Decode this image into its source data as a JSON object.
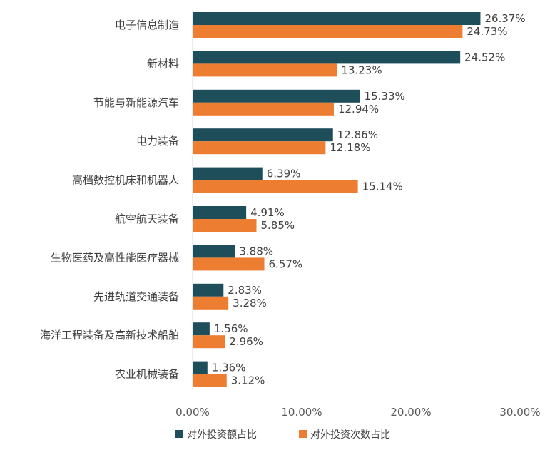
{
  "chart_data": {
    "type": "bar",
    "orientation": "horizontal",
    "categories": [
      "电子信息制造",
      "新材料",
      "节能与新能源汽车",
      "电力装备",
      "高档数控机床和机器人",
      "航空航天装备",
      "生物医药及高性能医疗器械",
      "先进轨道交通装备",
      "海洋工程装备及高新技术船舶",
      "农业机械装备"
    ],
    "series": [
      {
        "name": "对外投资额占比",
        "color": "#1f4e5b",
        "values": [
          26.37,
          24.52,
          15.33,
          12.86,
          6.39,
          4.91,
          3.88,
          2.83,
          1.56,
          1.36
        ],
        "labels": [
          "26.37%",
          "24.52%",
          "15.33%",
          "12.86%",
          "6.39%",
          "4.91%",
          "3.88%",
          "2.83%",
          "1.56%",
          "1.36%"
        ]
      },
      {
        "name": "对外投资次数占比",
        "color": "#ed7d31",
        "values": [
          24.73,
          13.23,
          12.94,
          12.18,
          15.14,
          5.85,
          6.57,
          3.28,
          2.96,
          3.12
        ],
        "labels": [
          "24.73%",
          "13.23%",
          "12.94%",
          "12.18%",
          "15.14%",
          "5.85%",
          "6.57%",
          "3.28%",
          "2.96%",
          "3.12%"
        ]
      }
    ],
    "xlim": [
      0,
      30
    ],
    "xticks": [
      0,
      10,
      20,
      30
    ],
    "xtick_labels": [
      "0.00%",
      "10.00%",
      "20.00%",
      "30.00%"
    ],
    "grid": false,
    "legend_position": "bottom"
  }
}
